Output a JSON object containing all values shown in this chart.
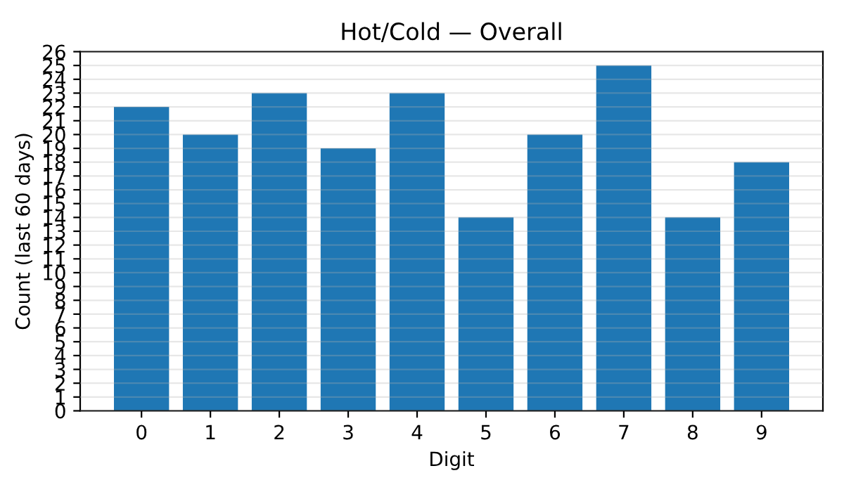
{
  "chart_data": {
    "type": "bar",
    "title": "Hot/Cold — Overall",
    "xlabel": "Digit",
    "ylabel": "Count (last 60 days)",
    "categories": [
      "0",
      "1",
      "2",
      "3",
      "4",
      "5",
      "6",
      "7",
      "8",
      "9"
    ],
    "values": [
      22,
      20,
      23,
      19,
      23,
      14,
      20,
      25,
      14,
      18
    ],
    "color": "#1f77b4",
    "ylim": [
      0,
      26
    ],
    "yticks": [
      0,
      1,
      2,
      3,
      4,
      5,
      6,
      7,
      8,
      9,
      10,
      11,
      12,
      13,
      14,
      15,
      16,
      17,
      18,
      19,
      20,
      21,
      22,
      23,
      24,
      25,
      26
    ],
    "grid": "y"
  }
}
